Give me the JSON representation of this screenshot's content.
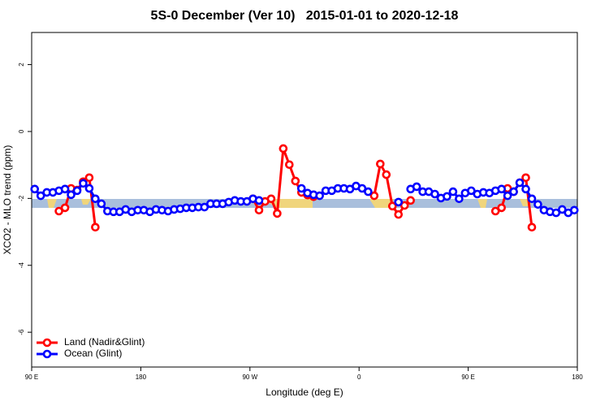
{
  "chart_data": {
    "type": "line",
    "title": "5S-0 December (Ver 10)   2015-01-01 to 2020-12-18",
    "x_label": "Longitude (deg E)",
    "y_label": "XCO2 - MLO trend (ppm)",
    "xlim": [
      90,
      540
    ],
    "ylim": [
      -7.04,
      2.96
    ],
    "xticks": [
      {
        "value": 90,
        "label": "90 E"
      },
      180,
      {
        "value": 270,
        "label": "90 W"
      },
      {
        "value": 360,
        "label": "0"
      },
      {
        "value": 450,
        "label": "90 E"
      },
      {
        "value": 540,
        "label": "180"
      }
    ],
    "yticks": [
      2,
      0,
      -2,
      -4,
      -6
    ],
    "legend": "bottom-left",
    "x": [
      92.5,
      97.5,
      102.5,
      107.5,
      112.5,
      117.5,
      122.5,
      127.5,
      132.5,
      137.5,
      142.5,
      147.5,
      152.5,
      157.5,
      162.5,
      167.5,
      172.5,
      177.5,
      182.5,
      187.5,
      192.5,
      197.5,
      202.5,
      207.5,
      212.5,
      217.5,
      222.5,
      227.5,
      232.5,
      237.5,
      242.5,
      247.5,
      252.5,
      257.5,
      262.5,
      267.5,
      272.5,
      277.5,
      282.5,
      287.5,
      292.5,
      297.5,
      302.5,
      307.5,
      312.5,
      317.5,
      322.5,
      327.5,
      332.5,
      337.5,
      342.5,
      347.5,
      352.5,
      357.5,
      362.5,
      367.5,
      372.5,
      377.5,
      382.5,
      387.5,
      392.5,
      397.5,
      402.5,
      407.5,
      412.5,
      417.5,
      422.5,
      427.5,
      432.5,
      437.5,
      442.5,
      447.5,
      452.5,
      457.5,
      462.5,
      467.5,
      472.5,
      477.5,
      482.5,
      487.5,
      492.5,
      497.5,
      502.5,
      507.5,
      512.5,
      517.5,
      522.5,
      527.5,
      532.5,
      537.5
    ],
    "series": [
      {
        "name": "Land (Nadir&Glint)",
        "color": "#ff0000",
        "values": [
          null,
          null,
          null,
          null,
          -2.38,
          -2.28,
          -1.7,
          -1.75,
          -1.5,
          -1.38,
          -2.86,
          null,
          null,
          null,
          null,
          null,
          null,
          null,
          null,
          null,
          null,
          null,
          null,
          null,
          null,
          null,
          null,
          null,
          null,
          null,
          null,
          null,
          null,
          null,
          null,
          null,
          -2.01,
          -2.35,
          -2.09,
          -2.01,
          -2.45,
          -0.51,
          -0.99,
          -1.48,
          -1.82,
          -1.9,
          -1.95,
          null,
          null,
          null,
          null,
          null,
          null,
          null,
          null,
          null,
          -1.92,
          -0.97,
          -1.29,
          -2.23,
          -2.48,
          -2.21,
          -2.06,
          null,
          null,
          null,
          null,
          null,
          null,
          null,
          null,
          null,
          null,
          null,
          null,
          null,
          -2.38,
          -2.28,
          -1.7,
          -1.8,
          -1.53,
          -1.38,
          -2.86,
          null,
          null,
          null,
          null,
          null,
          null,
          null
        ]
      },
      {
        "name": "Ocean (Glint)",
        "color": "#0000ff",
        "values": [
          -1.72,
          -1.92,
          -1.82,
          -1.82,
          -1.77,
          -1.72,
          -1.89,
          -1.77,
          -1.55,
          -1.7,
          -2.01,
          -2.16,
          -2.38,
          -2.4,
          -2.4,
          -2.33,
          -2.4,
          -2.35,
          -2.35,
          -2.4,
          -2.33,
          -2.35,
          -2.38,
          -2.33,
          -2.31,
          -2.28,
          -2.28,
          -2.26,
          -2.26,
          -2.16,
          -2.16,
          -2.16,
          -2.11,
          -2.06,
          -2.09,
          -2.09,
          -2.01,
          -2.06,
          null,
          null,
          null,
          null,
          null,
          null,
          -1.7,
          -1.84,
          -1.89,
          -1.92,
          -1.77,
          -1.77,
          -1.7,
          -1.7,
          -1.72,
          -1.63,
          -1.7,
          -1.8,
          null,
          null,
          null,
          null,
          -2.11,
          null,
          -1.72,
          -1.65,
          -1.8,
          -1.8,
          -1.87,
          -1.99,
          -1.94,
          -1.8,
          -2.01,
          -1.84,
          -1.77,
          -1.87,
          -1.82,
          -1.84,
          -1.77,
          -1.72,
          -1.92,
          -1.8,
          -1.53,
          -1.72,
          -2.01,
          -2.18,
          -2.35,
          -2.4,
          -2.43,
          -2.33,
          -2.43,
          -2.35
        ]
      }
    ]
  }
}
